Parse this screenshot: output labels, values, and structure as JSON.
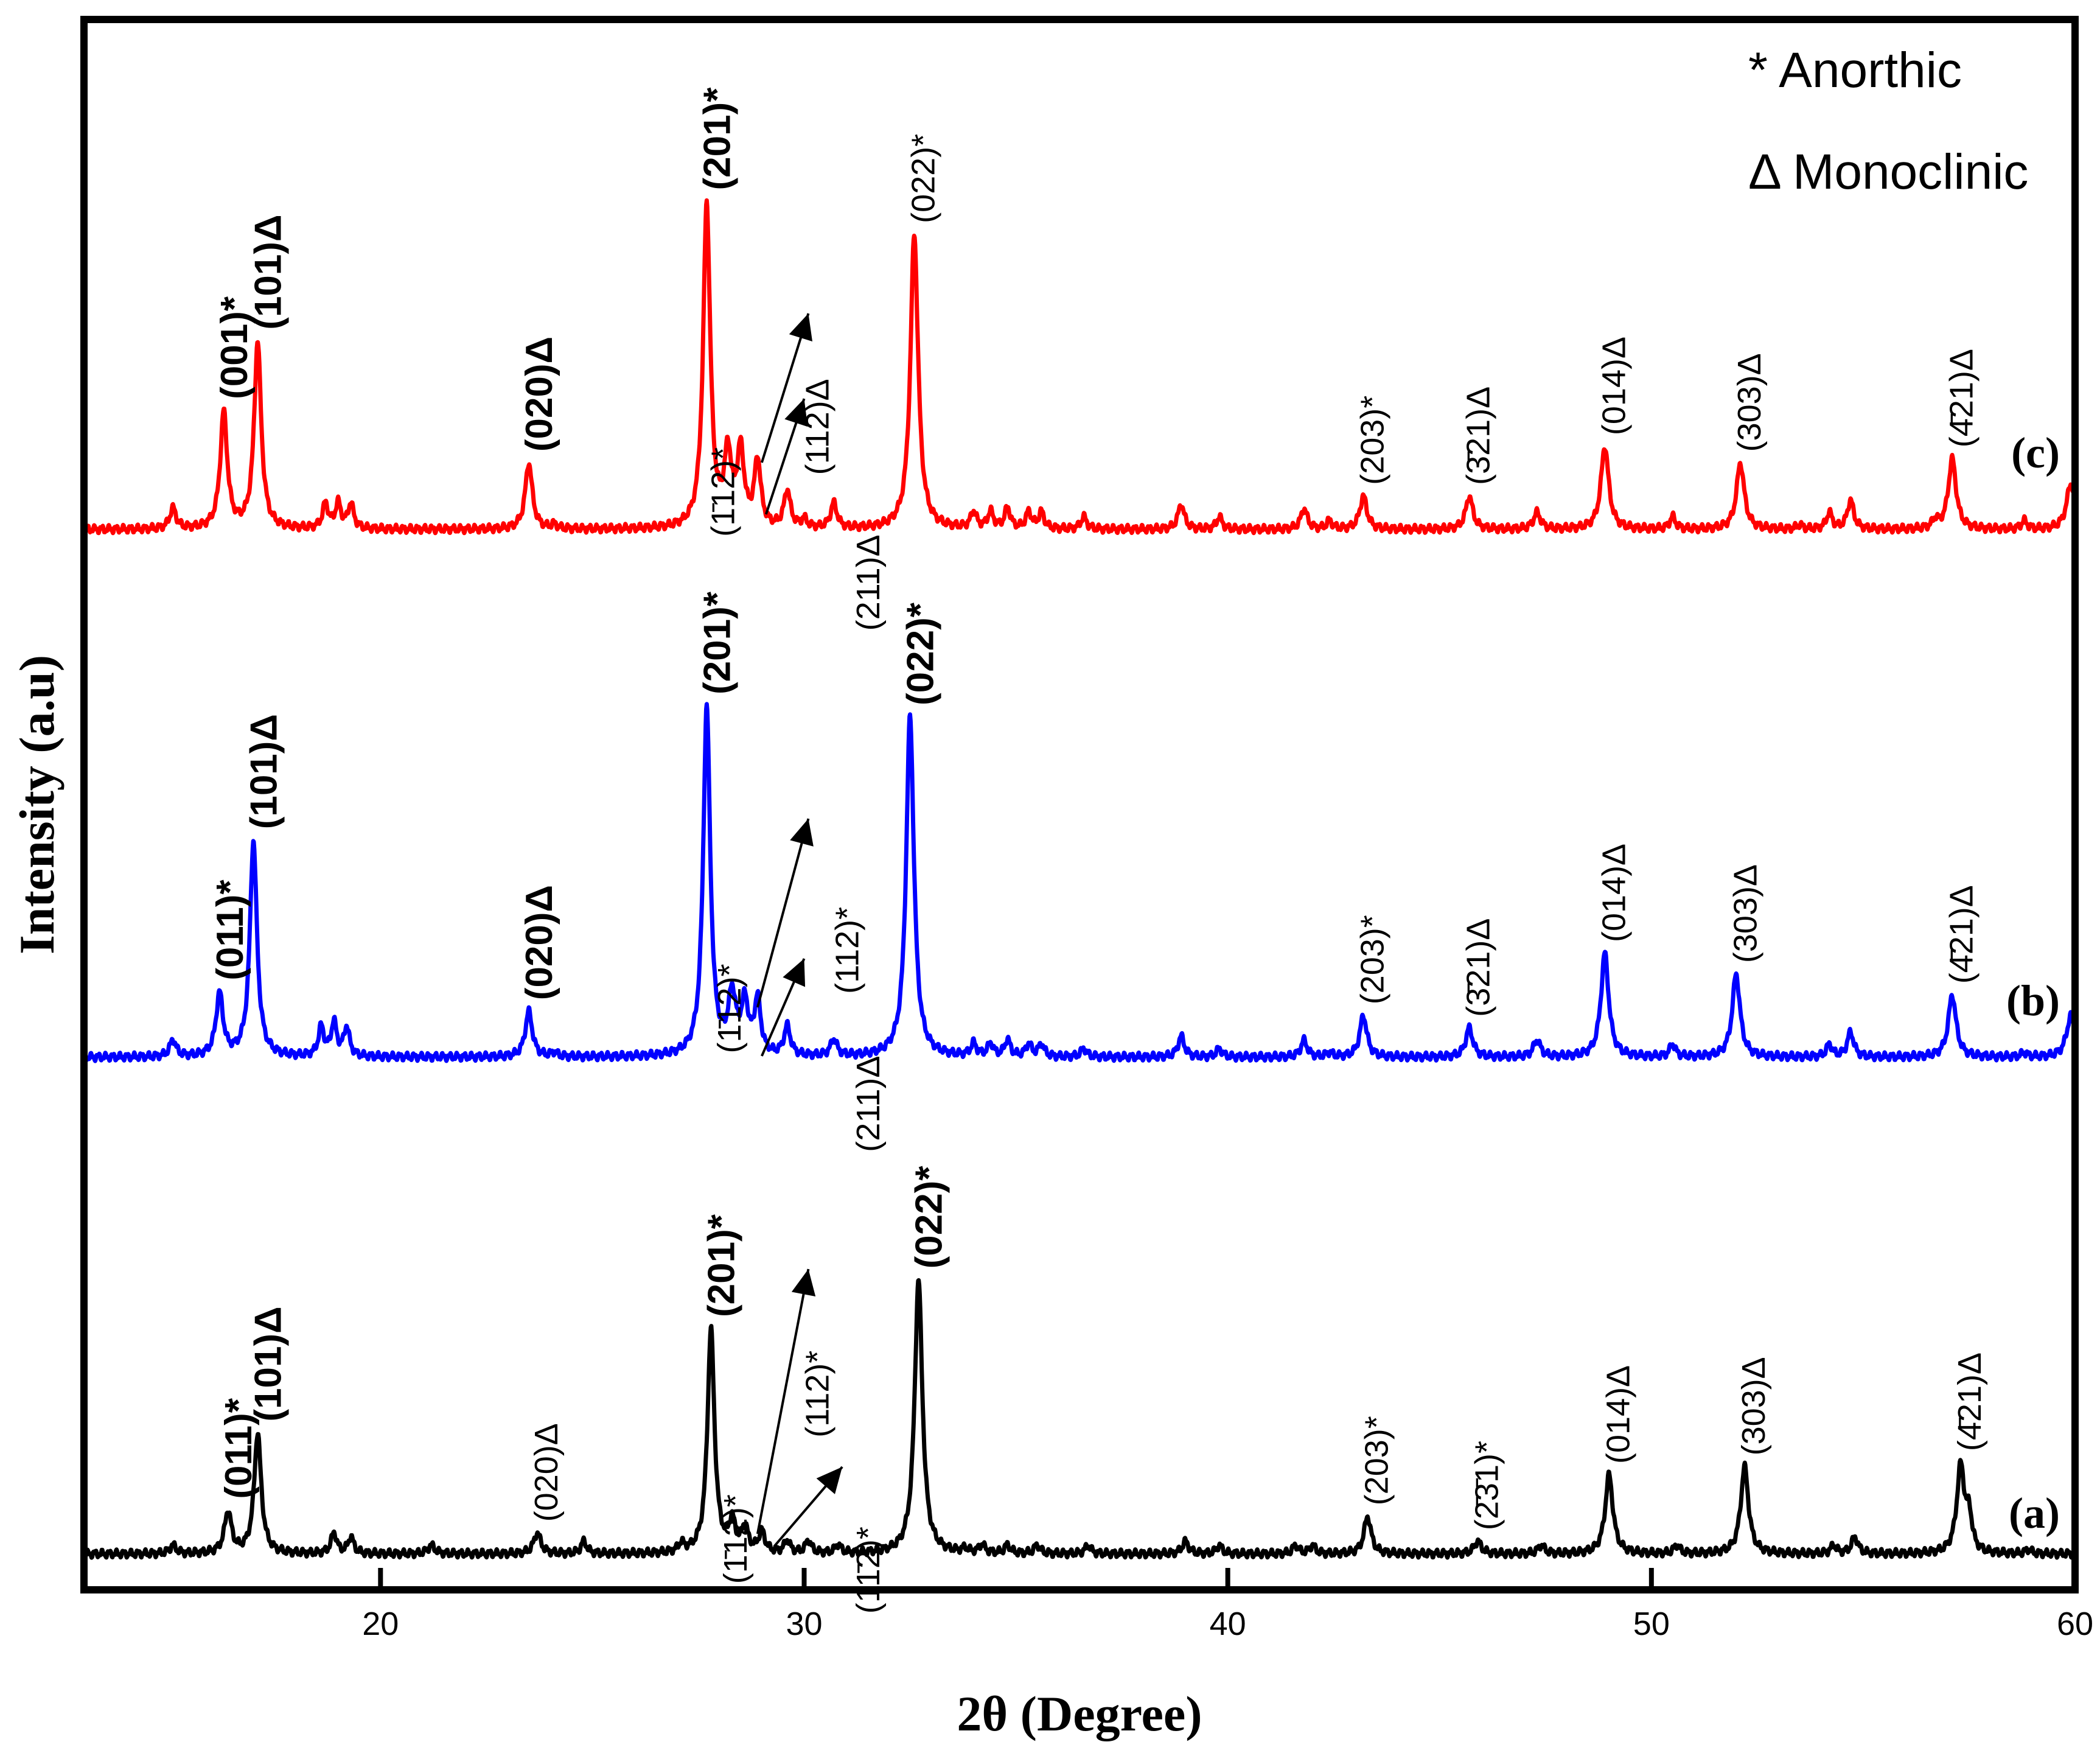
{
  "chart_data": {
    "type": "line",
    "title": "",
    "xlabel": "2θ (Degree)",
    "ylabel": "Intensity (a.u)",
    "xlim": [
      13,
      60
    ],
    "x_ticks": [
      20,
      30,
      40,
      50,
      60
    ],
    "x_tick_labels": [
      "20",
      "30",
      "40",
      "50",
      "60"
    ],
    "grid": false,
    "legend_position": "top-right",
    "legend": [
      "* Anorthic",
      "Δ Monoclinic"
    ],
    "series": [
      {
        "name": "(c)",
        "color": "#ff0000",
        "baseline": 0,
        "peaks": [
          {
            "x": 15.1,
            "h": 0.05,
            "w": 0.09
          },
          {
            "x": 16.3,
            "h": 0.28,
            "w": 0.1
          },
          {
            "x": 17.1,
            "h": 0.45,
            "w": 0.1
          },
          {
            "x": 18.7,
            "h": 0.06,
            "w": 0.08
          },
          {
            "x": 19.0,
            "h": 0.06,
            "w": 0.08
          },
          {
            "x": 19.3,
            "h": 0.06,
            "w": 0.08
          },
          {
            "x": 23.5,
            "h": 0.16,
            "w": 0.1
          },
          {
            "x": 24.1,
            "h": 0.01,
            "w": 0.08
          },
          {
            "x": 27.7,
            "h": 0.78,
            "w": 0.1
          },
          {
            "x": 28.2,
            "h": 0.17,
            "w": 0.1
          },
          {
            "x": 28.5,
            "h": 0.18,
            "w": 0.1
          },
          {
            "x": 28.9,
            "h": 0.16,
            "w": 0.09
          },
          {
            "x": 29.6,
            "h": 0.09,
            "w": 0.09
          },
          {
            "x": 30.0,
            "h": 0.02,
            "w": 0.08
          },
          {
            "x": 30.7,
            "h": 0.06,
            "w": 0.09
          },
          {
            "x": 32.6,
            "h": 0.71,
            "w": 0.11
          },
          {
            "x": 34.0,
            "h": 0.04,
            "w": 0.08
          },
          {
            "x": 34.4,
            "h": 0.04,
            "w": 0.08
          },
          {
            "x": 34.8,
            "h": 0.05,
            "w": 0.08
          },
          {
            "x": 35.3,
            "h": 0.04,
            "w": 0.08
          },
          {
            "x": 35.6,
            "h": 0.04,
            "w": 0.08
          },
          {
            "x": 36.6,
            "h": 0.03,
            "w": 0.08
          },
          {
            "x": 38.9,
            "h": 0.06,
            "w": 0.09
          },
          {
            "x": 39.8,
            "h": 0.03,
            "w": 0.08
          },
          {
            "x": 41.8,
            "h": 0.05,
            "w": 0.09
          },
          {
            "x": 42.4,
            "h": 0.02,
            "w": 0.08
          },
          {
            "x": 43.2,
            "h": 0.08,
            "w": 0.1
          },
          {
            "x": 45.7,
            "h": 0.08,
            "w": 0.1
          },
          {
            "x": 47.3,
            "h": 0.04,
            "w": 0.1
          },
          {
            "x": 48.9,
            "h": 0.2,
            "w": 0.11
          },
          {
            "x": 50.5,
            "h": 0.03,
            "w": 0.08
          },
          {
            "x": 52.1,
            "h": 0.16,
            "w": 0.11
          },
          {
            "x": 53.5,
            "h": 0.01,
            "w": 0.08
          },
          {
            "x": 54.2,
            "h": 0.04,
            "w": 0.08
          },
          {
            "x": 54.7,
            "h": 0.07,
            "w": 0.09
          },
          {
            "x": 56.7,
            "h": 0.02,
            "w": 0.08
          },
          {
            "x": 57.1,
            "h": 0.17,
            "w": 0.11
          },
          {
            "x": 58.8,
            "h": 0.02,
            "w": 0.08
          },
          {
            "x": 59.9,
            "h": 0.11,
            "w": 0.12
          }
        ]
      },
      {
        "name": "(b)",
        "color": "#0000ff",
        "baseline": 0,
        "peaks": [
          {
            "x": 15.1,
            "h": 0.04,
            "w": 0.09
          },
          {
            "x": 16.2,
            "h": 0.15,
            "w": 0.1
          },
          {
            "x": 17.0,
            "h": 0.52,
            "w": 0.1
          },
          {
            "x": 18.6,
            "h": 0.07,
            "w": 0.08
          },
          {
            "x": 18.9,
            "h": 0.08,
            "w": 0.08
          },
          {
            "x": 19.2,
            "h": 0.07,
            "w": 0.08
          },
          {
            "x": 23.5,
            "h": 0.11,
            "w": 0.1
          },
          {
            "x": 24.1,
            "h": 0.01,
            "w": 0.08
          },
          {
            "x": 27.7,
            "h": 0.84,
            "w": 0.1
          },
          {
            "x": 28.3,
            "h": 0.14,
            "w": 0.11
          },
          {
            "x": 28.6,
            "h": 0.12,
            "w": 0.1
          },
          {
            "x": 28.9,
            "h": 0.13,
            "w": 0.09
          },
          {
            "x": 29.6,
            "h": 0.07,
            "w": 0.09
          },
          {
            "x": 30.7,
            "h": 0.04,
            "w": 0.09
          },
          {
            "x": 32.5,
            "h": 0.82,
            "w": 0.11
          },
          {
            "x": 34.0,
            "h": 0.03,
            "w": 0.08
          },
          {
            "x": 34.4,
            "h": 0.03,
            "w": 0.08
          },
          {
            "x": 34.8,
            "h": 0.04,
            "w": 0.08
          },
          {
            "x": 35.3,
            "h": 0.03,
            "w": 0.08
          },
          {
            "x": 35.6,
            "h": 0.03,
            "w": 0.08
          },
          {
            "x": 36.6,
            "h": 0.02,
            "w": 0.08
          },
          {
            "x": 38.9,
            "h": 0.05,
            "w": 0.09
          },
          {
            "x": 39.8,
            "h": 0.02,
            "w": 0.08
          },
          {
            "x": 41.8,
            "h": 0.04,
            "w": 0.09
          },
          {
            "x": 42.4,
            "h": 0.01,
            "w": 0.08
          },
          {
            "x": 43.2,
            "h": 0.1,
            "w": 0.1
          },
          {
            "x": 45.7,
            "h": 0.07,
            "w": 0.1
          },
          {
            "x": 47.3,
            "h": 0.04,
            "w": 0.1
          },
          {
            "x": 48.9,
            "h": 0.25,
            "w": 0.11
          },
          {
            "x": 50.5,
            "h": 0.03,
            "w": 0.08
          },
          {
            "x": 52.0,
            "h": 0.2,
            "w": 0.11
          },
          {
            "x": 54.2,
            "h": 0.03,
            "w": 0.08
          },
          {
            "x": 54.7,
            "h": 0.06,
            "w": 0.09
          },
          {
            "x": 57.1,
            "h": 0.15,
            "w": 0.11
          },
          {
            "x": 58.8,
            "h": 0.01,
            "w": 0.08
          },
          {
            "x": 59.9,
            "h": 0.1,
            "w": 0.12
          }
        ]
      },
      {
        "name": "(a)",
        "color": "#000000",
        "baseline": 0,
        "peaks": [
          {
            "x": 15.1,
            "h": 0.02,
            "w": 0.09
          },
          {
            "x": 16.4,
            "h": 0.1,
            "w": 0.1
          },
          {
            "x": 17.1,
            "h": 0.29,
            "w": 0.1
          },
          {
            "x": 18.9,
            "h": 0.05,
            "w": 0.08
          },
          {
            "x": 19.3,
            "h": 0.04,
            "w": 0.08
          },
          {
            "x": 21.2,
            "h": 0.02,
            "w": 0.1
          },
          {
            "x": 23.7,
            "h": 0.05,
            "w": 0.1
          },
          {
            "x": 24.8,
            "h": 0.03,
            "w": 0.08
          },
          {
            "x": 27.1,
            "h": 0.02,
            "w": 0.08
          },
          {
            "x": 27.8,
            "h": 0.54,
            "w": 0.1
          },
          {
            "x": 28.3,
            "h": 0.07,
            "w": 0.09
          },
          {
            "x": 28.6,
            "h": 0.06,
            "w": 0.09
          },
          {
            "x": 29.0,
            "h": 0.05,
            "w": 0.09
          },
          {
            "x": 29.6,
            "h": 0.03,
            "w": 0.08
          },
          {
            "x": 30.1,
            "h": 0.03,
            "w": 0.08
          },
          {
            "x": 30.8,
            "h": 0.02,
            "w": 0.08
          },
          {
            "x": 32.7,
            "h": 0.66,
            "w": 0.11
          },
          {
            "x": 33.8,
            "h": 0.01,
            "w": 0.08
          },
          {
            "x": 34.2,
            "h": 0.02,
            "w": 0.08
          },
          {
            "x": 34.8,
            "h": 0.02,
            "w": 0.08
          },
          {
            "x": 35.5,
            "h": 0.02,
            "w": 0.08
          },
          {
            "x": 36.7,
            "h": 0.02,
            "w": 0.08
          },
          {
            "x": 39.0,
            "h": 0.03,
            "w": 0.09
          },
          {
            "x": 39.8,
            "h": 0.02,
            "w": 0.08
          },
          {
            "x": 41.6,
            "h": 0.02,
            "w": 0.08
          },
          {
            "x": 42.0,
            "h": 0.02,
            "w": 0.08
          },
          {
            "x": 43.3,
            "h": 0.09,
            "w": 0.1
          },
          {
            "x": 45.9,
            "h": 0.03,
            "w": 0.1
          },
          {
            "x": 47.4,
            "h": 0.02,
            "w": 0.09
          },
          {
            "x": 49.0,
            "h": 0.19,
            "w": 0.11
          },
          {
            "x": 50.6,
            "h": 0.02,
            "w": 0.08
          },
          {
            "x": 52.2,
            "h": 0.21,
            "w": 0.11
          },
          {
            "x": 54.3,
            "h": 0.02,
            "w": 0.08
          },
          {
            "x": 54.8,
            "h": 0.04,
            "w": 0.09
          },
          {
            "x": 57.3,
            "h": 0.21,
            "w": 0.11
          },
          {
            "x": 57.5,
            "h": 0.08,
            "w": 0.08
          },
          {
            "x": 58.9,
            "h": 0.01,
            "w": 0.08
          }
        ]
      }
    ],
    "curve_labels": [
      "(c)",
      "(b)",
      "(a)"
    ],
    "annotations": [
      {
        "curve": "(c)",
        "x": 16.3,
        "label": "(001)*",
        "bold": true
      },
      {
        "curve": "(c)",
        "x": 17.1,
        "label": "(101)Δ",
        "bold": true
      },
      {
        "curve": "(c)",
        "x": 23.5,
        "label": "(020)Δ",
        "bold": true
      },
      {
        "curve": "(c)",
        "x": 28.3,
        "label": "(1̄12)*",
        "bold": false
      },
      {
        "curve": "(c)",
        "x": 27.7,
        "label": "(201)*",
        "bold": true
      },
      {
        "curve": "(c)",
        "x": 30.1,
        "label": "(112)Δ",
        "bold": false
      },
      {
        "curve": "(c)",
        "x": 31.3,
        "label": "(211)Δ",
        "bold": false
      },
      {
        "curve": "(c)",
        "x": 32.6,
        "label": "(022)*",
        "bold": false
      },
      {
        "curve": "(c)",
        "x": 43.2,
        "label": "(203)*",
        "bold": false
      },
      {
        "curve": "(c)",
        "x": 45.7,
        "label": "(3̄21)Δ",
        "bold": false
      },
      {
        "curve": "(c)",
        "x": 48.9,
        "label": "(014)Δ",
        "bold": false
      },
      {
        "curve": "(c)",
        "x": 52.1,
        "label": "(303)Δ",
        "bold": false
      },
      {
        "curve": "(c)",
        "x": 57.1,
        "label": "(4̄21)Δ",
        "bold": false
      },
      {
        "curve": "(b)",
        "x": 16.2,
        "label": "(011)*",
        "bold": true
      },
      {
        "curve": "(b)",
        "x": 17.0,
        "label": "(101)Δ",
        "bold": true
      },
      {
        "curve": "(b)",
        "x": 23.5,
        "label": "(020)Δ",
        "bold": true
      },
      {
        "curve": "(b)",
        "x": 28.6,
        "label": "(1̄12)*",
        "bold": false
      },
      {
        "curve": "(b)",
        "x": 27.7,
        "label": "(201)*",
        "bold": true
      },
      {
        "curve": "(b)",
        "x": 30.8,
        "label": "(112)*",
        "bold": false
      },
      {
        "curve": "(b)",
        "x": 31.3,
        "label": "(211)Δ",
        "bold": false
      },
      {
        "curve": "(b)",
        "x": 32.5,
        "label": "(022)*",
        "bold": true
      },
      {
        "curve": "(b)",
        "x": 43.2,
        "label": "(203)*",
        "bold": false
      },
      {
        "curve": "(b)",
        "x": 45.7,
        "label": "(3̄21)Δ",
        "bold": false
      },
      {
        "curve": "(b)",
        "x": 48.9,
        "label": "(014)Δ",
        "bold": false
      },
      {
        "curve": "(b)",
        "x": 52.0,
        "label": "(303)Δ",
        "bold": false
      },
      {
        "curve": "(b)",
        "x": 57.1,
        "label": "(4̄21)Δ",
        "bold": false
      },
      {
        "curve": "(a)",
        "x": 16.4,
        "label": "(011)*",
        "bold": true
      },
      {
        "curve": "(a)",
        "x": 17.1,
        "label": "(101)Δ",
        "bold": true
      },
      {
        "curve": "(a)",
        "x": 23.7,
        "label": "(020)Δ",
        "bold": false
      },
      {
        "curve": "(a)",
        "x": 28.6,
        "label": "(1̄12)*",
        "bold": false
      },
      {
        "curve": "(a)",
        "x": 27.8,
        "label": "(201)*",
        "bold": true
      },
      {
        "curve": "(a)",
        "x": 30.1,
        "label": "(112)*",
        "bold": false
      },
      {
        "curve": "(a)",
        "x": 31.3,
        "label": "(11̄2)*",
        "bold": false
      },
      {
        "curve": "(a)",
        "x": 32.7,
        "label": "(022)*",
        "bold": true
      },
      {
        "curve": "(a)",
        "x": 43.3,
        "label": "(203)*",
        "bold": false
      },
      {
        "curve": "(a)",
        "x": 45.9,
        "label": "(2̄3̄1)*",
        "bold": false
      },
      {
        "curve": "(a)",
        "x": 49.0,
        "label": "(014)Δ",
        "bold": false
      },
      {
        "curve": "(a)",
        "x": 52.2,
        "label": "(303)Δ",
        "bold": false
      },
      {
        "curve": "(a)",
        "x": 57.3,
        "label": "(4̄21)Δ",
        "bold": false
      }
    ]
  }
}
